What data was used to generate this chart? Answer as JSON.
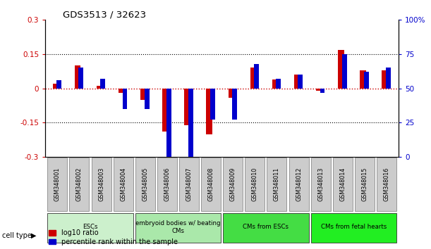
{
  "title": "GDS3513 / 32623",
  "samples": [
    "GSM348001",
    "GSM348002",
    "GSM348003",
    "GSM348004",
    "GSM348005",
    "GSM348006",
    "GSM348007",
    "GSM348008",
    "GSM348009",
    "GSM348010",
    "GSM348011",
    "GSM348012",
    "GSM348013",
    "GSM348014",
    "GSM348015",
    "GSM348016"
  ],
  "log10_ratio": [
    0.02,
    0.1,
    0.01,
    -0.02,
    -0.05,
    -0.19,
    -0.16,
    -0.2,
    -0.04,
    0.09,
    0.04,
    0.06,
    -0.01,
    0.17,
    0.08,
    0.08
  ],
  "percentile_rank": [
    56,
    65,
    57,
    35,
    35,
    0,
    0,
    27,
    27,
    68,
    57,
    60,
    47,
    75,
    62,
    65
  ],
  "bar_color_red": "#CC0000",
  "bar_color_blue": "#0000CC",
  "left_ylim": [
    -0.3,
    0.3
  ],
  "right_ylim": [
    0,
    100
  ],
  "left_yticks": [
    -0.3,
    -0.15,
    0,
    0.15,
    0.3
  ],
  "right_yticks": [
    0,
    25,
    50,
    75,
    100
  ],
  "left_yticklabels": [
    "-0.3",
    "-0.15",
    "0",
    "0.15",
    "0.3"
  ],
  "right_yticklabels": [
    "0",
    "25",
    "50",
    "75",
    "100%"
  ],
  "dotted_lines": [
    -0.15,
    0.15
  ],
  "background_color": "#ffffff",
  "cell_type_label": "cell type",
  "cell_types": [
    {
      "label": "ESCs",
      "start": 0,
      "end": 3,
      "color": "#ccf0cc"
    },
    {
      "label": "embryoid bodies w/ beating\nCMs",
      "start": 4,
      "end": 7,
      "color": "#aae8aa"
    },
    {
      "label": "CMs from ESCs",
      "start": 8,
      "end": 11,
      "color": "#44dd44"
    },
    {
      "label": "CMs from fetal hearts",
      "start": 12,
      "end": 15,
      "color": "#22ee22"
    }
  ],
  "legend_labels": [
    "log10 ratio",
    "percentile rank within the sample"
  ]
}
